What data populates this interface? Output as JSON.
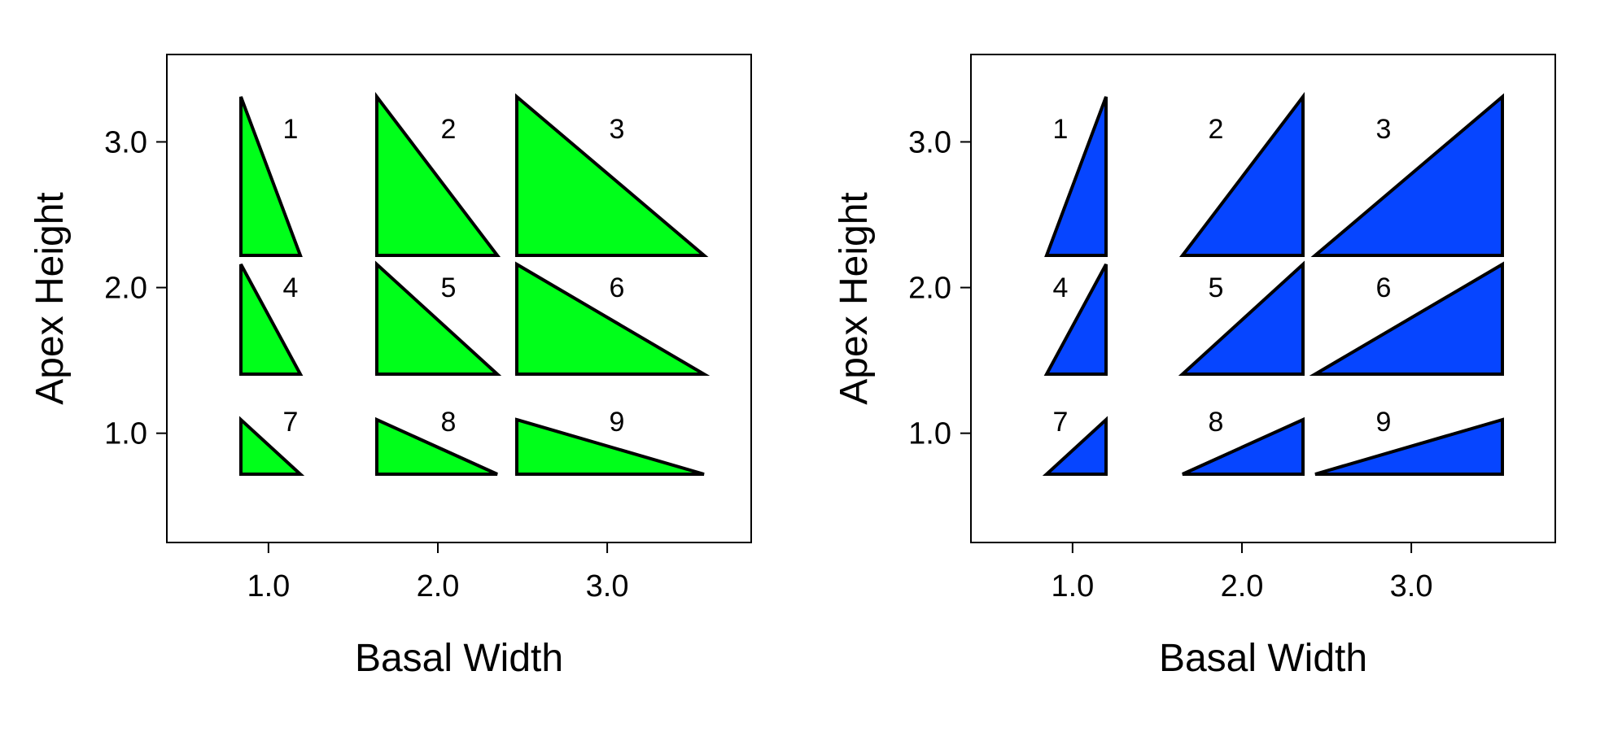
{
  "chart_data": [
    {
      "type": "scatter",
      "marker": "right-triangle",
      "orientation": "vertical-edge-left",
      "fill_color": "#00ff1a",
      "xlabel": "Basal Width",
      "ylabel": "Apex Height",
      "xticks": [
        "1.0",
        "2.0",
        "3.0"
      ],
      "yticks": [
        "1.0",
        "2.0",
        "3.0"
      ],
      "xlim": [
        0.4,
        3.85
      ],
      "ylim": [
        0.25,
        3.6
      ],
      "grid": false,
      "points": [
        {
          "label": "1",
          "x": 1.0,
          "y": 3.0,
          "basal_width": 1.0,
          "apex_height": 3.0
        },
        {
          "label": "2",
          "x": 2.0,
          "y": 3.0,
          "basal_width": 2.0,
          "apex_height": 3.0
        },
        {
          "label": "3",
          "x": 3.0,
          "y": 3.0,
          "basal_width": 3.0,
          "apex_height": 3.0
        },
        {
          "label": "4",
          "x": 1.0,
          "y": 2.0,
          "basal_width": 1.0,
          "apex_height": 2.0
        },
        {
          "label": "5",
          "x": 2.0,
          "y": 2.0,
          "basal_width": 2.0,
          "apex_height": 2.0
        },
        {
          "label": "6",
          "x": 3.0,
          "y": 2.0,
          "basal_width": 3.0,
          "apex_height": 2.0
        },
        {
          "label": "7",
          "x": 1.0,
          "y": 1.0,
          "basal_width": 1.0,
          "apex_height": 1.0
        },
        {
          "label": "8",
          "x": 2.0,
          "y": 1.0,
          "basal_width": 2.0,
          "apex_height": 1.0
        },
        {
          "label": "9",
          "x": 3.0,
          "y": 1.0,
          "basal_width": 3.0,
          "apex_height": 1.0
        }
      ]
    },
    {
      "type": "scatter",
      "marker": "right-triangle",
      "orientation": "vertical-edge-right",
      "fill_color": "#0645ff",
      "xlabel": "Basal Width",
      "ylabel": "Apex Height",
      "xticks": [
        "1.0",
        "2.0",
        "3.0"
      ],
      "yticks": [
        "1.0",
        "2.0",
        "3.0"
      ],
      "xlim": [
        0.4,
        3.85
      ],
      "ylim": [
        0.25,
        3.6
      ],
      "grid": false,
      "points": [
        {
          "label": "1",
          "x": 1.0,
          "y": 3.0,
          "basal_width": 1.0,
          "apex_height": 3.0
        },
        {
          "label": "2",
          "x": 2.0,
          "y": 3.0,
          "basal_width": 2.0,
          "apex_height": 3.0
        },
        {
          "label": "3",
          "x": 3.0,
          "y": 3.0,
          "basal_width": 3.0,
          "apex_height": 3.0
        },
        {
          "label": "4",
          "x": 1.0,
          "y": 2.0,
          "basal_width": 1.0,
          "apex_height": 2.0
        },
        {
          "label": "5",
          "x": 2.0,
          "y": 2.0,
          "basal_width": 2.0,
          "apex_height": 2.0
        },
        {
          "label": "6",
          "x": 3.0,
          "y": 2.0,
          "basal_width": 3.0,
          "apex_height": 2.0
        },
        {
          "label": "7",
          "x": 1.0,
          "y": 1.0,
          "basal_width": 1.0,
          "apex_height": 1.0
        },
        {
          "label": "8",
          "x": 2.0,
          "y": 1.0,
          "basal_width": 2.0,
          "apex_height": 1.0
        },
        {
          "label": "9",
          "x": 3.0,
          "y": 1.0,
          "basal_width": 3.0,
          "apex_height": 1.0
        }
      ]
    }
  ]
}
